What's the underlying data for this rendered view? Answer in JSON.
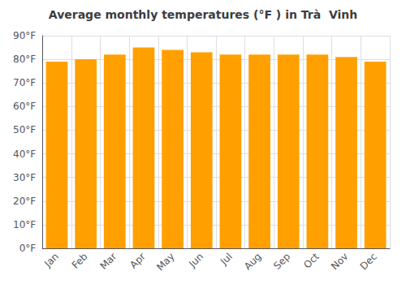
{
  "chart_data": {
    "type": "bar",
    "title": "Average monthly temperatures (°F ) in Trà  Vinh",
    "categories": [
      "Jan",
      "Feb",
      "Mar",
      "Apr",
      "May",
      "Jun",
      "Jul",
      "Aug",
      "Sep",
      "Oct",
      "Nov",
      "Dec"
    ],
    "values": [
      79,
      80,
      82,
      85,
      84,
      83,
      82,
      82,
      82,
      82,
      81,
      79
    ],
    "color": "#FFA000",
    "ylim": [
      0,
      90
    ],
    "yticks": [
      {
        "value": 0,
        "label": "0°F"
      },
      {
        "value": 10,
        "label": "10°F"
      },
      {
        "value": 20,
        "label": "20°F"
      },
      {
        "value": 30,
        "label": "30°F"
      },
      {
        "value": 40,
        "label": "40°F"
      },
      {
        "value": 50,
        "label": "50°F"
      },
      {
        "value": 60,
        "label": "60°F"
      },
      {
        "value": 70,
        "label": "70°F"
      },
      {
        "value": 80,
        "label": "80°F"
      },
      {
        "value": 90,
        "label": "90°F"
      }
    ],
    "grid": true
  }
}
